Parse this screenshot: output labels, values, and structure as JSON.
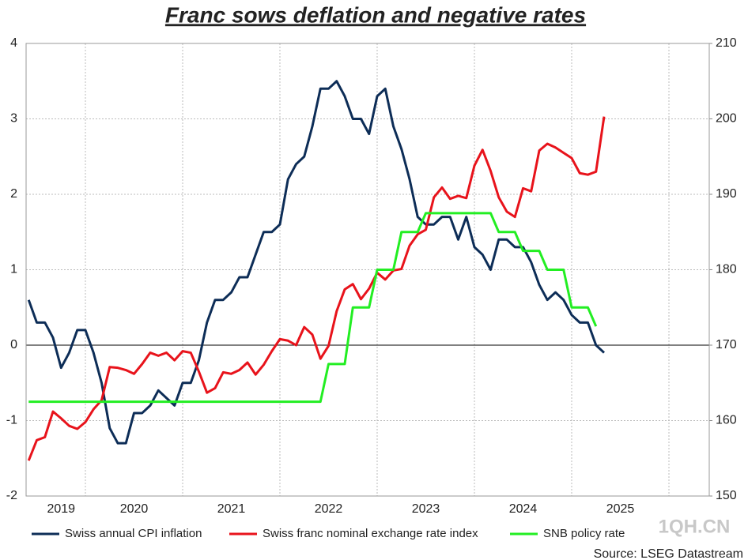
{
  "chart_data": {
    "type": "line",
    "title": "Franc sows deflation and negative rates",
    "source": "Source: LSEG Datastream",
    "watermark": "1QH.CN",
    "categories": [
      null,
      null,
      null,
      null,
      null,
      "2019",
      null,
      null,
      null,
      null,
      null,
      null,
      null,
      null,
      "2020",
      null,
      null,
      null,
      null,
      null,
      null,
      null,
      null,
      null,
      null,
      null,
      "2021",
      null,
      null,
      null,
      null,
      null,
      null,
      null,
      null,
      null,
      null,
      null,
      "2022",
      null,
      null,
      null,
      null,
      null,
      null,
      null,
      null,
      null,
      null,
      null,
      "2023",
      null,
      null,
      null,
      null,
      null,
      null,
      null,
      null,
      null,
      null,
      null,
      "2024",
      null,
      null,
      null,
      null,
      null,
      null,
      null,
      null,
      null,
      null,
      null,
      "2025",
      null,
      null,
      null,
      null,
      null,
      null,
      null,
      null,
      null,
      null
    ],
    "ylim": [
      -2,
      4
    ],
    "yticks": [
      -2,
      -1,
      0,
      1,
      2,
      3,
      4
    ],
    "y2lim": [
      150,
      210
    ],
    "y2ticks": [
      150,
      160,
      170,
      180,
      190,
      200,
      210
    ],
    "grid": true,
    "legend": "bottom",
    "series": [
      {
        "name": "Swiss annual CPI inflation",
        "color": "#0d2d57",
        "values": [
          null,
          0.6,
          0.3,
          0.3,
          0.1,
          -0.3,
          -0.1,
          0.2,
          0.2,
          -0.1,
          -0.5,
          -1.1,
          -1.3,
          -1.3,
          -0.9,
          -0.9,
          -0.8,
          -0.6,
          -0.7,
          -0.8,
          -0.5,
          -0.5,
          -0.2,
          0.3,
          0.6,
          0.6,
          0.7,
          0.9,
          0.9,
          1.2,
          1.5,
          1.5,
          1.6,
          2.2,
          2.4,
          2.5,
          2.9,
          3.4,
          3.4,
          3.5,
          3.3,
          3.0,
          3.0,
          2.8,
          3.3,
          3.4,
          2.9,
          2.6,
          2.2,
          1.7,
          1.6,
          1.6,
          1.7,
          1.7,
          1.4,
          1.7,
          1.3,
          1.2,
          1.0,
          1.4,
          1.4,
          1.3,
          1.3,
          1.1,
          0.8,
          0.6,
          0.7,
          0.6,
          0.4,
          0.3,
          0.3,
          0.0,
          -0.1,
          null,
          null,
          null,
          null,
          null,
          null,
          null,
          null,
          null,
          null,
          null,
          null
        ]
      },
      {
        "name": "Swiss franc nominal exchange rate index",
        "color": "#e8131b",
        "axis": "y2",
        "values": [
          null,
          154.7,
          157.4,
          157.8,
          161.2,
          160.3,
          159.3,
          158.9,
          159.8,
          161.5,
          162.7,
          167.1,
          167.0,
          166.7,
          166.2,
          167.5,
          169.0,
          168.6,
          169.0,
          168.0,
          169.2,
          169.0,
          166.5,
          163.7,
          164.3,
          166.4,
          166.2,
          166.7,
          167.7,
          166.1,
          167.4,
          169.2,
          170.8,
          170.6,
          170.0,
          172.4,
          171.4,
          168.2,
          169.9,
          174.5,
          177.4,
          178.1,
          176.1,
          177.5,
          179.6,
          178.7,
          179.9,
          180.1,
          183.2,
          184.7,
          185.3,
          189.6,
          190.9,
          189.4,
          189.8,
          189.5,
          193.8,
          195.9,
          193.1,
          189.6,
          187.7,
          187.0,
          190.8,
          190.4,
          195.8,
          196.7,
          196.2,
          195.5,
          194.8,
          192.8,
          192.6,
          193.0,
          200.3,
          null,
          null,
          null,
          null,
          null,
          null,
          null,
          null,
          null,
          null,
          null,
          null
        ]
      },
      {
        "name": "SNB policy rate",
        "color": "#22ee22",
        "values": [
          null,
          -0.75,
          -0.75,
          -0.75,
          -0.75,
          -0.75,
          -0.75,
          -0.75,
          -0.75,
          -0.75,
          -0.75,
          -0.75,
          -0.75,
          -0.75,
          -0.75,
          -0.75,
          -0.75,
          -0.75,
          -0.75,
          -0.75,
          -0.75,
          -0.75,
          -0.75,
          -0.75,
          -0.75,
          -0.75,
          -0.75,
          -0.75,
          -0.75,
          -0.75,
          -0.75,
          -0.75,
          -0.75,
          -0.75,
          -0.75,
          -0.75,
          -0.75,
          -0.75,
          -0.25,
          -0.25,
          -0.25,
          0.5,
          0.5,
          0.5,
          1.0,
          1.0,
          1.0,
          1.5,
          1.5,
          1.5,
          1.75,
          1.75,
          1.75,
          1.75,
          1.75,
          1.75,
          1.75,
          1.75,
          1.75,
          1.5,
          1.5,
          1.5,
          1.25,
          1.25,
          1.25,
          1.0,
          1.0,
          1.0,
          0.5,
          0.5,
          0.5,
          0.25,
          null,
          null,
          null,
          null,
          null,
          null,
          null,
          null,
          null,
          null,
          null,
          null,
          null
        ]
      }
    ]
  }
}
